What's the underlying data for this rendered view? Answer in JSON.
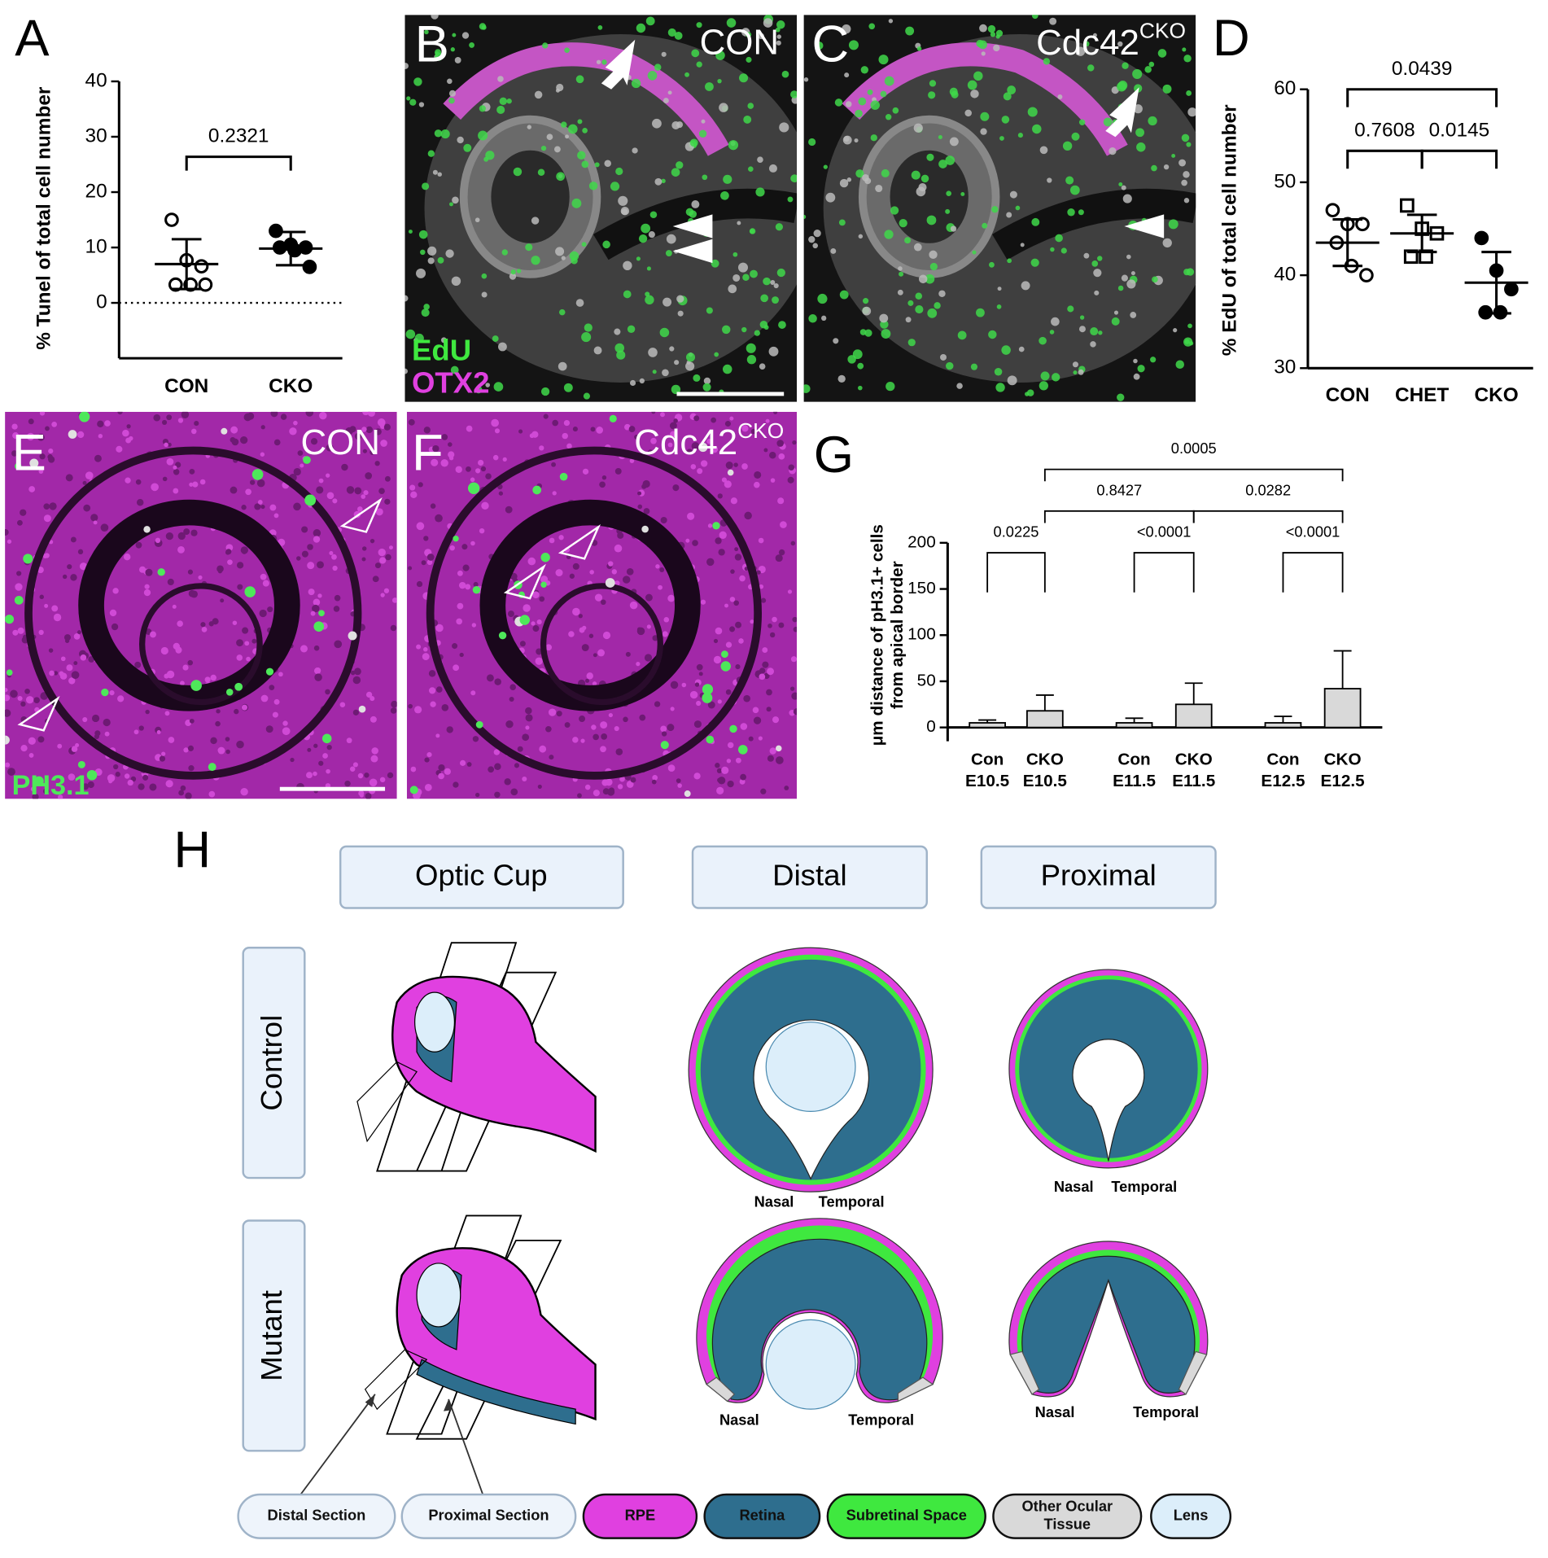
{
  "panel_letters": [
    "A",
    "B",
    "C",
    "D",
    "E",
    "F",
    "G",
    "H"
  ],
  "chart_data": [
    {
      "type": "dot",
      "ylabel": "% Tunel of total cell number",
      "categories": [
        "CON",
        "CKO"
      ],
      "points": [
        [
          15,
          7.7,
          6.6,
          3.3,
          3.3,
          3.3
        ],
        [
          13,
          10.5,
          10,
          10,
          9.5,
          6.5
        ]
      ],
      "mean": [
        7,
        9.8
      ],
      "sd": [
        4.5,
        3
      ],
      "markers": [
        "open",
        "filled"
      ],
      "color": "#000000",
      "ylim": [
        -10,
        40
      ],
      "yticks": [
        0,
        10,
        20,
        30,
        40
      ],
      "x_axis": "bottom",
      "zero_line": "dotted",
      "comparisons": [
        {
          "pair": [
            0,
            1
          ],
          "label": "0.2321"
        }
      ]
    },
    {
      "type": "dot",
      "ylabel": "% EdU of total cell number",
      "categories": [
        "CON",
        "CHET",
        "CKO"
      ],
      "points": [
        [
          47,
          45.5,
          45.5,
          43.5,
          41,
          40
        ],
        [
          47.5,
          45,
          44.5,
          42,
          42
        ],
        [
          44,
          40.5,
          38.5,
          36,
          36
        ]
      ],
      "mean": [
        43.5,
        44.5,
        39.2
      ],
      "sd": [
        2.5,
        2,
        3.3
      ],
      "markers": [
        "open",
        "open-square",
        "filled"
      ],
      "color": "#000000",
      "ylim": [
        30,
        60
      ],
      "yticks": [
        30,
        40,
        50,
        60
      ],
      "x_axis": "bottom",
      "comparisons": [
        {
          "pair": [
            0,
            1
          ],
          "label": "0.7608"
        },
        {
          "pair": [
            1,
            2
          ],
          "label": "0.0145"
        },
        {
          "pair": [
            0,
            2
          ],
          "label": "0.0439"
        }
      ]
    },
    {
      "type": "bar",
      "ylabel": [
        "μm distance of pH3.1+ cells",
        "from apical border"
      ],
      "categories": [
        "Con",
        "CKO",
        "Con",
        "CKO",
        "Con",
        "CKO"
      ],
      "groups": [
        "E10.5",
        "E10.5",
        "E11.5",
        "E11.5",
        "E12.5",
        "E12.5"
      ],
      "mean": [
        5,
        18,
        5,
        25,
        5,
        42
      ],
      "sd": [
        3,
        17,
        5,
        23,
        7,
        41
      ],
      "color": "#d9d9d9",
      "ylim": [
        -15,
        200
      ],
      "yticks": [
        0,
        50,
        100,
        150,
        200
      ],
      "x_axis": "zero",
      "comparisons": [
        {
          "pair": [
            0,
            1
          ],
          "label": "0.0225"
        },
        {
          "pair": [
            2,
            3
          ],
          "label": "<0.0001"
        },
        {
          "pair": [
            4,
            5
          ],
          "label": "<0.0001"
        },
        {
          "pair": [
            1,
            3
          ],
          "label": "0.8427"
        },
        {
          "pair": [
            3,
            5
          ],
          "label": "0.0282"
        },
        {
          "pair": [
            1,
            5
          ],
          "label": "0.0005"
        }
      ]
    }
  ],
  "images": [
    {
      "condition": "CON",
      "stains": [
        "EdU",
        "OTX2"
      ]
    },
    {
      "condition": "Cdc42",
      "superscript": "CKO"
    },
    {
      "condition": "CON",
      "stains": [
        "PH3.1"
      ]
    },
    {
      "condition": "Cdc42",
      "superscript": "CKO"
    }
  ],
  "diagram": {
    "headers": [
      "Optic Cup",
      "Distal",
      "Proximal"
    ],
    "rows": [
      "Control",
      "Mutant"
    ],
    "sides": [
      "Nasal",
      "Temporal"
    ],
    "legend": [
      {
        "label": [
          "Distal Section"
        ],
        "color": "#eef4fb"
      },
      {
        "label": [
          "Proximal Section"
        ],
        "color": "#eef4fb"
      },
      {
        "label": [
          "RPE"
        ],
        "color": "#e040e0"
      },
      {
        "label": [
          "Retina"
        ],
        "color": "#2e6e8e"
      },
      {
        "label": [
          "Subretinal Space"
        ],
        "color": "#3fe83f"
      },
      {
        "label": [
          "Other Ocular",
          "Tissue"
        ],
        "color": "#d9d9d9"
      },
      {
        "label": [
          "Lens"
        ],
        "color": "#dceefa"
      }
    ]
  }
}
